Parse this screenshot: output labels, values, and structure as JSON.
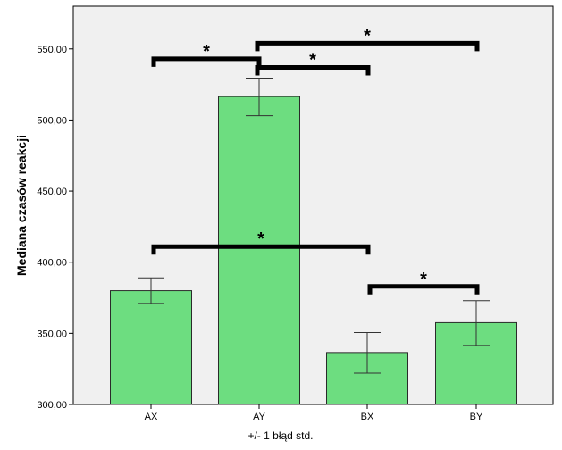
{
  "chart_data": {
    "type": "bar",
    "categories": [
      "AX",
      "AY",
      "BX",
      "BY"
    ],
    "values": [
      380.0,
      516.5,
      336.5,
      357.5
    ],
    "error_bars": {
      "lower": [
        371.0,
        503.0,
        322.0,
        341.5
      ],
      "upper": [
        389.0,
        529.5,
        350.5,
        373.0
      ]
    },
    "ylabel": "Mediana czasów reakcji",
    "xlabel": "+/- 1 błąd std.",
    "ylim": [
      300,
      580
    ],
    "yticks": [
      300,
      350,
      400,
      450,
      500,
      550
    ],
    "ytick_labels": [
      "300,00",
      "350,00",
      "400,00",
      "450,00",
      "500,00",
      "550,00"
    ],
    "grid": false,
    "colors": {
      "bar_fill": "#6ddd80",
      "bar_stroke": "#2a2a2a",
      "plot_background": "#f0f0f0",
      "bracket": "#000000"
    },
    "significance": [
      {
        "from": 0,
        "to": 1,
        "y": 543.0,
        "label": "*"
      },
      {
        "from": 1,
        "to": 3,
        "y": 554.0,
        "label": "*"
      },
      {
        "from": 1,
        "to": 2,
        "y": 537.0,
        "label": "*"
      },
      {
        "from": 0,
        "to": 2,
        "y": 411.0,
        "label": "*"
      },
      {
        "from": 2,
        "to": 3,
        "y": 383.0,
        "label": "*"
      }
    ]
  }
}
